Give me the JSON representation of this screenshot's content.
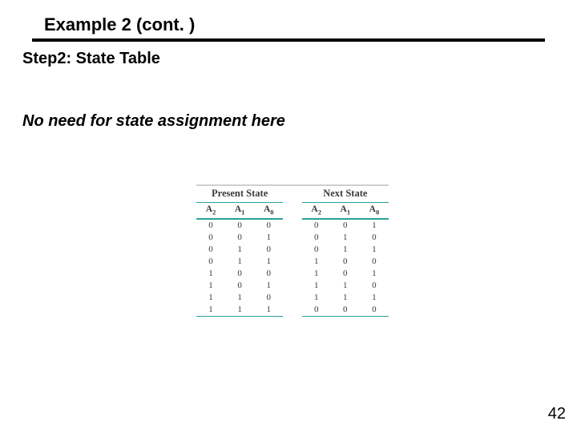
{
  "slide": {
    "title": "Example 2 (cont. )",
    "step_label": "Step2: State Table",
    "note": "No need for state assignment here",
    "page_number": "42"
  },
  "state_table": {
    "type": "table",
    "headers": {
      "present": "Present State",
      "next": "Next State",
      "sub": [
        "A",
        "A",
        "A",
        "A",
        "A",
        "A"
      ],
      "sub_idx": [
        "2",
        "1",
        "0",
        "2",
        "1",
        "0"
      ]
    },
    "rows": [
      [
        "0",
        "0",
        "0",
        "0",
        "0",
        "1"
      ],
      [
        "0",
        "0",
        "1",
        "0",
        "1",
        "0"
      ],
      [
        "0",
        "1",
        "0",
        "0",
        "1",
        "1"
      ],
      [
        "0",
        "1",
        "1",
        "1",
        "0",
        "0"
      ],
      [
        "1",
        "0",
        "0",
        "1",
        "0",
        "1"
      ],
      [
        "1",
        "0",
        "1",
        "1",
        "1",
        "0"
      ],
      [
        "1",
        "1",
        "0",
        "1",
        "1",
        "1"
      ],
      [
        "1",
        "1",
        "1",
        "0",
        "0",
        "0"
      ]
    ],
    "colors": {
      "top_rule": "#cfcfcf",
      "teal_rule": "#2aa198",
      "text": "#3a3a3a"
    },
    "fonts": {
      "header_size_pt": 12.5,
      "subheader_size_pt": 11.5,
      "body_size_pt": 11
    }
  }
}
